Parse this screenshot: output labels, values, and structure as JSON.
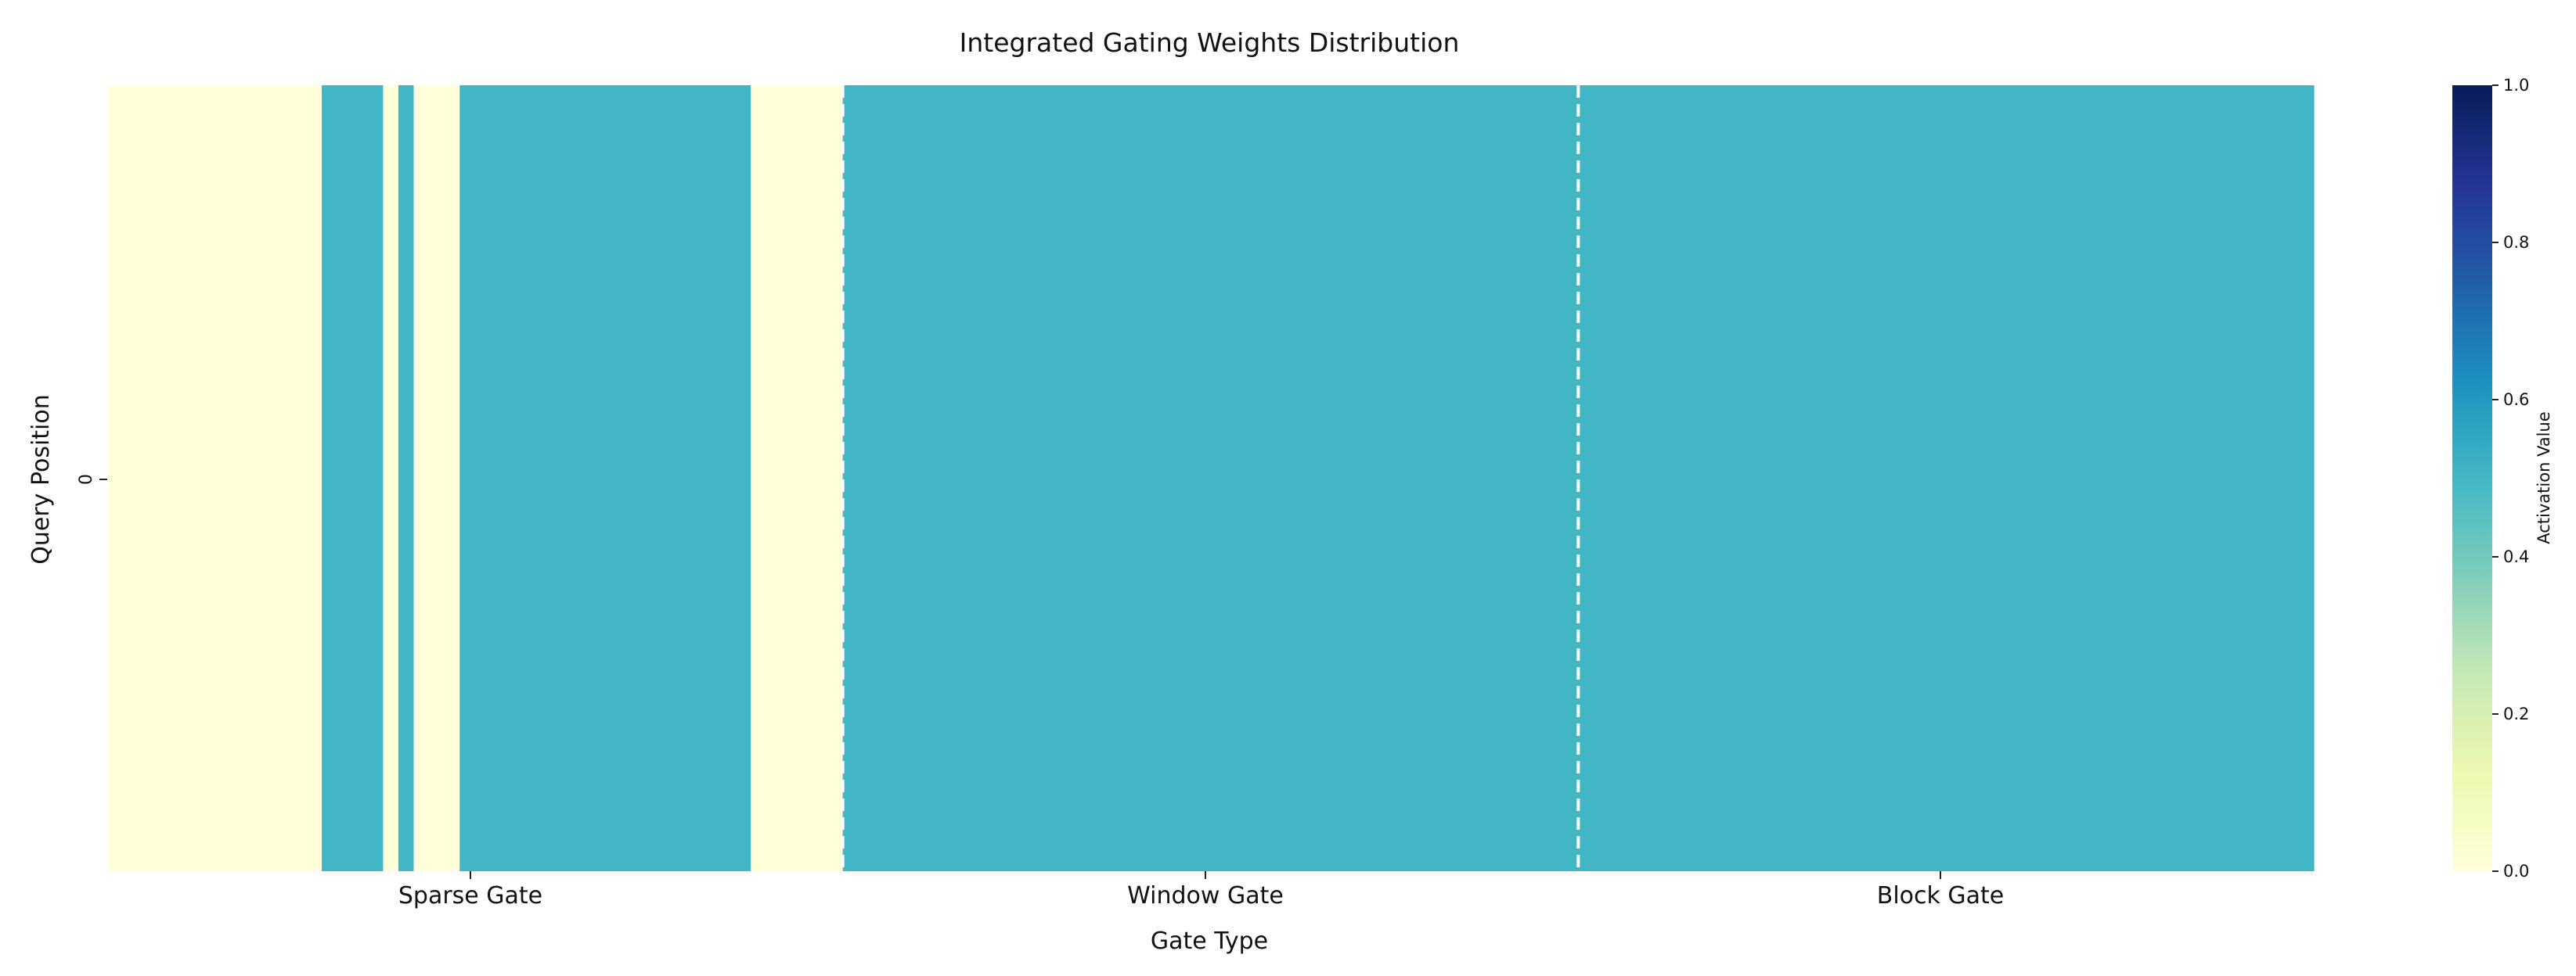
{
  "chart_data": {
    "type": "heatmap",
    "title": "Integrated Gating Weights Distribution",
    "xlabel": "Gate Type",
    "ylabel": "Query Position",
    "x_tick_labels": [
      "Sparse Gate",
      "Window Gate",
      "Block Gate"
    ],
    "y_tick_labels": [
      "0"
    ],
    "colorbar": {
      "label": "Activation Value",
      "range": [
        0.0,
        1.0
      ],
      "ticks": [
        "0.0",
        "0.2",
        "0.4",
        "0.6",
        "0.8",
        "1.0"
      ],
      "colormap": "YlGnBu"
    },
    "num_columns": 144,
    "separators_after_column": [
      48,
      96
    ],
    "row_values": [
      [
        0,
        0,
        0,
        0,
        0,
        0,
        0,
        0,
        0,
        0,
        0,
        0,
        0,
        0,
        0.5,
        0.5,
        0.5,
        0.5,
        0,
        0.5,
        0,
        0,
        0,
        0.5,
        0.5,
        0.5,
        0.5,
        0.5,
        0.5,
        0.5,
        0.5,
        0.5,
        0.5,
        0.5,
        0.5,
        0.5,
        0.5,
        0.5,
        0.5,
        0.5,
        0.5,
        0.5,
        0,
        0,
        0,
        0,
        0,
        0,
        0.5,
        0.5,
        0.5,
        0.5,
        0.5,
        0.5,
        0.5,
        0.5,
        0.5,
        0.5,
        0.5,
        0.5,
        0.5,
        0.5,
        0.5,
        0.5,
        0.5,
        0.5,
        0.5,
        0.5,
        0.5,
        0.5,
        0.5,
        0.5,
        0.5,
        0.5,
        0.5,
        0.5,
        0.5,
        0.5,
        0.5,
        0.5,
        0.5,
        0.5,
        0.5,
        0.5,
        0.5,
        0.5,
        0.5,
        0.5,
        0.5,
        0.5,
        0.5,
        0.5,
        0.5,
        0.5,
        0.5,
        0.5,
        0.5,
        0.5,
        0.5,
        0.5,
        0.5,
        0.5,
        0.5,
        0.5,
        0.5,
        0.5,
        0.5,
        0.5,
        0.5,
        0.5,
        0.5,
        0.5,
        0.5,
        0.5,
        0.5,
        0.5,
        0.5,
        0.5,
        0.5,
        0.5,
        0.5,
        0.5,
        0.5,
        0.5,
        0.5,
        0.5,
        0.5,
        0.5,
        0.5,
        0.5,
        0.5,
        0.5,
        0.5,
        0.5,
        0.5,
        0.5,
        0.5,
        0.5,
        0.5,
        0.5,
        0.5,
        0.5,
        0.5,
        0.5
      ]
    ]
  }
}
